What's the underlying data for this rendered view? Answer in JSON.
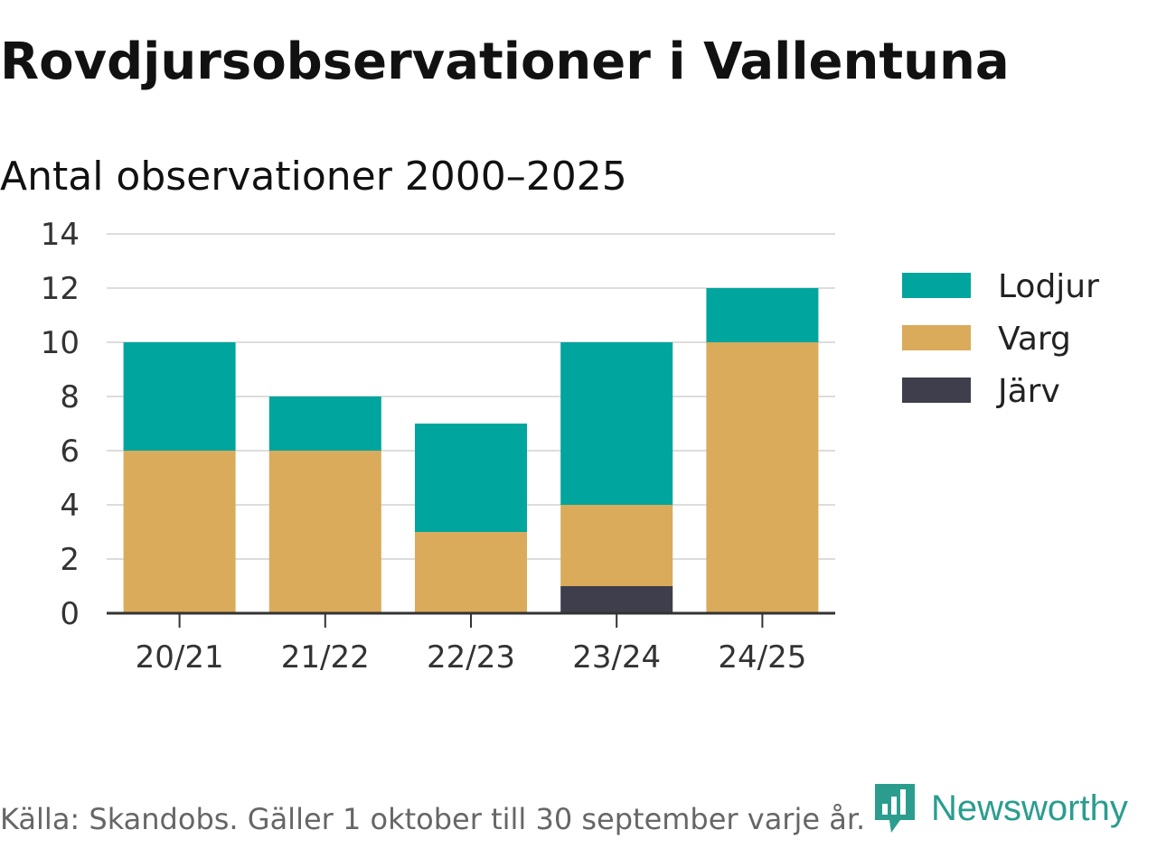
{
  "chart_data": {
    "type": "bar",
    "stacked": true,
    "title": "Rovdjursobservationer i Vallentuna",
    "subtitle": "Antal observationer 2000–2025",
    "categories": [
      "20/21",
      "21/22",
      "22/23",
      "23/24",
      "24/25"
    ],
    "series": [
      {
        "name": "Järv",
        "values": [
          0,
          0,
          0,
          1,
          0
        ],
        "color": "#3f3e4c"
      },
      {
        "name": "Varg",
        "values": [
          6,
          6,
          3,
          3,
          10
        ],
        "color": "#d9ab5b"
      },
      {
        "name": "Lodjur",
        "values": [
          4,
          2,
          4,
          6,
          2
        ],
        "color": "#00a59e"
      }
    ],
    "legend_order": [
      "Lodjur",
      "Varg",
      "Järv"
    ],
    "legend_position": "right",
    "yticks": [
      "0",
      "2",
      "4",
      "6",
      "8",
      "10",
      "12",
      "14"
    ],
    "ylim": [
      0,
      14
    ],
    "grid": true
  },
  "footer": {
    "source": "Källa: Skandobs. Gäller 1 oktober till 30 september varje år.",
    "brand": "Newsworthy"
  },
  "colors": {
    "grid": "#dddddd",
    "axis": "#333333",
    "brand": "#2a9d8f"
  }
}
